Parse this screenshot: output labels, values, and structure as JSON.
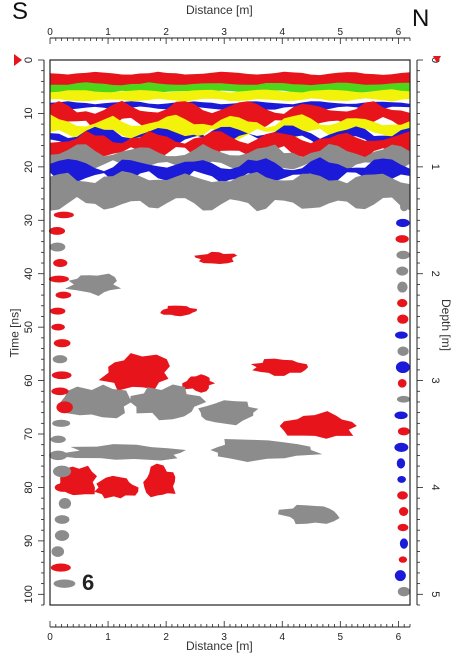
{
  "labels": {
    "south": "S",
    "north": "N",
    "panel_number": "6"
  },
  "chart_data": {
    "type": "heatmap",
    "title": "",
    "xlabel": "Distance [m]",
    "ylabel": "Time [ns]",
    "y2label": "Depth [m]",
    "xlim": [
      0,
      6.2
    ],
    "ylim": [
      0,
      102
    ],
    "y2lim": [
      0,
      5.1
    ],
    "x_ticks": [
      "0",
      "1",
      "2",
      "3",
      "4",
      "5",
      "6"
    ],
    "y_ticks": [
      "0",
      "10",
      "20",
      "30",
      "40",
      "50",
      "60",
      "70",
      "80",
      "90",
      "100"
    ],
    "y2_ticks": [
      "0",
      "1",
      "2",
      "3",
      "4",
      "5"
    ],
    "colors": {
      "positive_strong": "#e8141c",
      "negative": "#8c8c8c",
      "blue": "#1a1ad8",
      "yellow": "#f2f20a",
      "green": "#4fd61a",
      "background": "#ffffff",
      "marker": "#e8141c"
    },
    "reflection_bands": [
      {
        "color": "red",
        "x": [
          0,
          6.2
        ],
        "t": [
          2.5,
          5
        ]
      },
      {
        "color": "green",
        "x": [
          0,
          6.2
        ],
        "t": [
          4.5,
          6
        ]
      },
      {
        "color": "yellow",
        "x": [
          0,
          6.2
        ],
        "t": [
          5.8,
          7.5
        ]
      },
      {
        "color": "blue",
        "x": [
          0,
          6.2
        ],
        "t": [
          8,
          9
        ]
      },
      {
        "color": "red",
        "x": [
          0,
          6.2
        ],
        "t": [
          9,
          12
        ]
      },
      {
        "color": "yellow",
        "x": [
          0,
          6.2
        ],
        "t": [
          11.5,
          14
        ]
      },
      {
        "color": "blue",
        "x": [
          0,
          6.2
        ],
        "t": [
          13.5,
          15
        ]
      },
      {
        "color": "red",
        "x": [
          0,
          6.2
        ],
        "t": [
          14.5,
          17.5
        ]
      },
      {
        "color": "grey",
        "x": [
          0,
          6.2
        ],
        "t": [
          17,
          20
        ]
      },
      {
        "color": "blue",
        "x": [
          0,
          6.2
        ],
        "t": [
          19.5,
          22
        ]
      },
      {
        "color": "grey",
        "x": [
          0,
          6.2
        ],
        "t": [
          22,
          27
        ]
      }
    ],
    "reflections": [
      {
        "color": "red",
        "x": [
          0.9,
          2.1
        ],
        "t": [
          55,
          62
        ]
      },
      {
        "color": "red",
        "x": [
          2.3,
          2.8
        ],
        "t": [
          59,
          62
        ]
      },
      {
        "color": "red",
        "x": [
          3.5,
          4.4
        ],
        "t": [
          56,
          59
        ]
      },
      {
        "color": "red",
        "x": [
          4.0,
          5.3
        ],
        "t": [
          66,
          71
        ]
      },
      {
        "color": "red",
        "x": [
          0.1,
          0.8
        ],
        "t": [
          76,
          82
        ]
      },
      {
        "color": "red",
        "x": [
          0.8,
          1.5
        ],
        "t": [
          78,
          82
        ]
      },
      {
        "color": "red",
        "x": [
          1.6,
          2.2
        ],
        "t": [
          76,
          82
        ]
      },
      {
        "color": "grey",
        "x": [
          0.2,
          1.4
        ],
        "t": [
          61,
          67
        ]
      },
      {
        "color": "grey",
        "x": [
          1.4,
          2.6
        ],
        "t": [
          61,
          67
        ]
      },
      {
        "color": "grey",
        "x": [
          2.6,
          3.6
        ],
        "t": [
          64,
          68
        ]
      },
      {
        "color": "grey",
        "x": [
          0.2,
          2.4
        ],
        "t": [
          72,
          75
        ]
      },
      {
        "color": "grey",
        "x": [
          2.6,
          4.6
        ],
        "t": [
          71,
          75
        ]
      },
      {
        "color": "grey",
        "x": [
          4.0,
          5.0
        ],
        "t": [
          83,
          87
        ]
      },
      {
        "color": "red",
        "x": [
          2.5,
          3.2
        ],
        "t": [
          36,
          38
        ]
      },
      {
        "color": "grey",
        "x": [
          0.3,
          1.2
        ],
        "t": [
          40,
          44
        ]
      },
      {
        "color": "red",
        "x": [
          1.9,
          2.5
        ],
        "t": [
          46,
          48
        ]
      }
    ]
  }
}
